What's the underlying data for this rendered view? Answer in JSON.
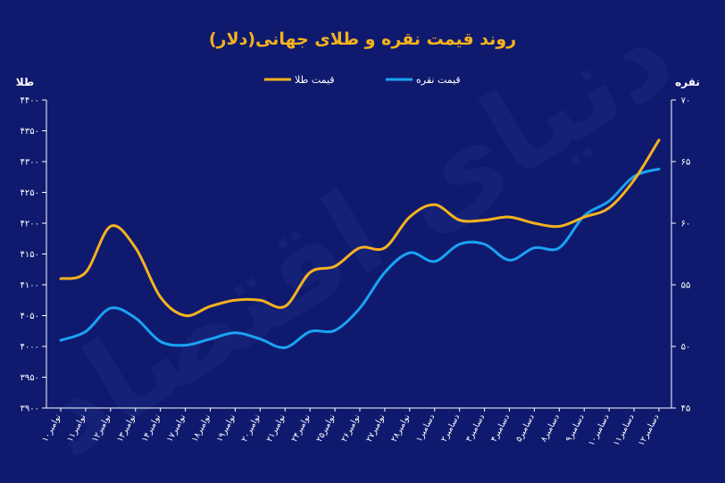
{
  "chart_data": {
    "type": "line",
    "title": "روند قیمت نقره و طلای جهانی(دلار)",
    "watermark": "دنیای اقتصاد",
    "left_axis": {
      "label": "طلا",
      "ylim": [
        3900,
        4400
      ],
      "ticks": [
        "۴۴۰۰",
        "۴۳۵۰",
        "۴۳۰۰",
        "۴۲۵۰",
        "۴۲۰۰",
        "۴۱۵۰",
        "۴۱۰۰",
        "۴۰۵۰",
        "۴۰۰۰",
        "۳۹۵۰",
        "۳۹۰۰"
      ]
    },
    "right_axis": {
      "label": "نقره",
      "ylim": [
        45,
        70
      ],
      "ticks": [
        "۷۰",
        "۶۵",
        "۶۰",
        "۵۵",
        "۵۰",
        "۴۵"
      ]
    },
    "categories": [
      "۱۰نوامبر",
      "۱۱نوامبر",
      "۱۲نوامبر",
      "۱۳نوامبر",
      "۱۴نوامبر",
      "۱۷نوامبر",
      "۱۸نوامبر",
      "۱۹نوامبر",
      "۲۰نوامبر",
      "۲۱نوامبر",
      "۲۴نوامبر",
      "۲۵نوامبر",
      "۲۶نوامبر",
      "۲۷نوامبر",
      "۲۸نوامبر",
      "۱دسامبر",
      "۲دسامبر",
      "۳دسامبر",
      "۴دسامبر",
      "۵دسامبر",
      "۸دسامبر",
      "۹دسامبر",
      "۱۰دسامبر",
      "۱۱دسامبر",
      "۱۲دسامبر"
    ],
    "series": [
      {
        "name": "قیمت طلا",
        "color": "#f5b21e",
        "axis": "left",
        "values": [
          4110,
          4120,
          4195,
          4160,
          4080,
          4050,
          4065,
          4075,
          4075,
          4065,
          4120,
          4130,
          4160,
          4160,
          4210,
          4230,
          4205,
          4205,
          4210,
          4200,
          4195,
          4210,
          4225,
          4270,
          4335
        ]
      },
      {
        "name": "قیمت نقره",
        "color": "#1aa3f5",
        "axis": "right",
        "values": [
          50.5,
          51.2,
          53.1,
          52.3,
          50.4,
          50.1,
          50.6,
          51.1,
          50.6,
          49.9,
          51.2,
          51.3,
          53.1,
          56.0,
          57.6,
          56.9,
          58.3,
          58.3,
          57.0,
          58.0,
          58.0,
          60.6,
          61.8,
          63.8,
          64.4
        ]
      }
    ],
    "legend_position": "top-center"
  }
}
